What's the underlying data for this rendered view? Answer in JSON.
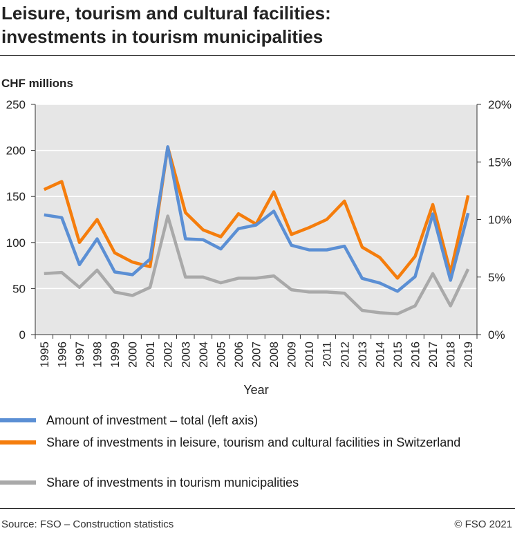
{
  "title_line1": "Leisure, tourism and cultural facilities:",
  "title_line2": "investments in tourism municipalities",
  "footer": {
    "source": "Source: FSO – Construction statistics",
    "copyright": "© FSO 2021"
  },
  "colors": {
    "blue": "#5b8fd4",
    "orange": "#f57d0c",
    "gray": "#a9a9a9",
    "plot_bg": "#e6e6e6",
    "grid": "#ffffff"
  },
  "chart_data": {
    "type": "line",
    "title": "Leisure, tourism and cultural facilities: investments in tourism municipalities",
    "ylabel": "CHF millions",
    "xlabel": "Year",
    "ylim": [
      0,
      250
    ],
    "y2lim": [
      0,
      20
    ],
    "yticks": [
      "0",
      "50",
      "100",
      "150",
      "200",
      "250"
    ],
    "y2ticks": [
      "0%",
      "5%",
      "10%",
      "15%",
      "20%"
    ],
    "categories": [
      "1995",
      "1996",
      "1997",
      "1998",
      "1999",
      "2000",
      "2001",
      "2002",
      "2003",
      "2004",
      "2005",
      "2006",
      "2007",
      "2008",
      "2009",
      "2010",
      "2011",
      "2012",
      "2013",
      "2014",
      "2015",
      "2016",
      "2017",
      "2018",
      "2019"
    ],
    "grid": true,
    "legend_position": "bottom",
    "series": [
      {
        "name": "Amount of investment – total (left axis)",
        "axis": "left",
        "color": "#5b8fd4",
        "values": [
          130,
          127,
          76,
          104,
          68,
          65,
          82,
          204,
          104,
          103,
          93,
          115,
          119,
          134,
          97,
          92,
          92,
          96,
          61,
          56,
          47,
          63,
          131,
          59,
          132
        ]
      },
      {
        "name": "Share of investments in leisure, tourism and cultural facilities in Switzerland",
        "axis": "right",
        "color": "#f57d0c",
        "values": [
          12.6,
          13.3,
          8.0,
          10.0,
          7.1,
          6.3,
          5.9,
          16.3,
          10.6,
          9.1,
          8.5,
          10.5,
          9.6,
          12.4,
          8.7,
          9.3,
          10.0,
          11.6,
          7.6,
          6.7,
          4.9,
          6.8,
          11.3,
          5.4,
          12.1
        ]
      },
      {
        "name": "Share of investments in tourism municipalities",
        "axis": "right",
        "color": "#a9a9a9",
        "values": [
          5.3,
          5.4,
          4.1,
          5.6,
          3.7,
          3.4,
          4.1,
          10.3,
          5.0,
          5.0,
          4.5,
          4.9,
          4.9,
          5.1,
          3.9,
          3.7,
          3.7,
          3.6,
          2.1,
          1.9,
          1.8,
          2.5,
          5.3,
          2.5,
          5.7
        ]
      }
    ]
  }
}
